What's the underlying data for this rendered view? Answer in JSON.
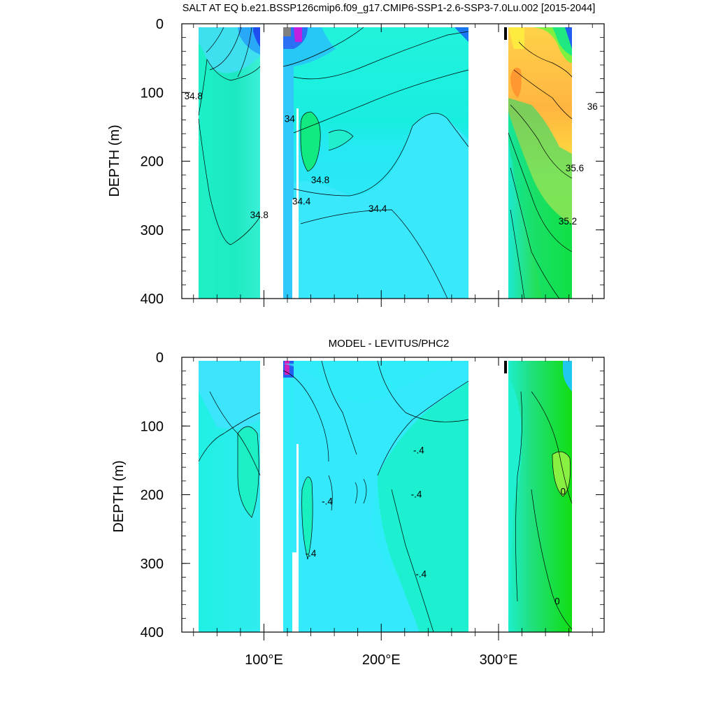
{
  "chart_data": [
    {
      "type": "heatmap",
      "title": "SALT AT EQ b.e21.BSSP126cmip6.f09_g17.CMIP6-SSP1-2.6-SSP3-7.0Lu.002 [2015-2044]",
      "xlabel": "",
      "ylabel": "DEPTH (m)",
      "xlim": [
        30,
        390
      ],
      "ylim": [
        400,
        0
      ],
      "y_ticks": [
        "0",
        "100",
        "200",
        "300",
        "400"
      ],
      "x_ticks": [
        "100°E",
        "200°E",
        "300°E"
      ],
      "x_tick_values": [
        100,
        200,
        300
      ],
      "grid": false,
      "contour_labels": [
        {
          "text": "34.8",
          "x": 40,
          "y": 110
        },
        {
          "text": "34",
          "x": 122,
          "y": 143
        },
        {
          "text": "34.8",
          "x": 148,
          "y": 232
        },
        {
          "text": "34.4",
          "x": 132,
          "y": 263
        },
        {
          "text": "34.4",
          "x": 197,
          "y": 274
        },
        {
          "text": "34.8",
          "x": 96,
          "y": 283
        },
        {
          "text": "36",
          "x": 380,
          "y": 125
        },
        {
          "text": "35.6",
          "x": 365,
          "y": 215
        },
        {
          "text": "35.2",
          "x": 359,
          "y": 292
        }
      ]
    },
    {
      "type": "heatmap",
      "title": "MODEL - LEVITUS/PHC2",
      "xlabel": "",
      "ylabel": "DEPTH (m)",
      "xlim": [
        30,
        390
      ],
      "ylim": [
        400,
        0
      ],
      "y_ticks": [
        "0",
        "100",
        "200",
        "300",
        "400"
      ],
      "x_ticks": [
        "100°E",
        "200°E",
        "300°E"
      ],
      "x_tick_values": [
        100,
        200,
        300
      ],
      "grid": false,
      "contour_labels": [
        {
          "text": "-.4",
          "x": 232,
          "y": 140
        },
        {
          "text": "-.4",
          "x": 230,
          "y": 204
        },
        {
          "text": "-.4",
          "x": 154,
          "y": 214
        },
        {
          "text": "-.4",
          "x": 140,
          "y": 290
        },
        {
          "text": "-.4",
          "x": 234,
          "y": 320
        },
        {
          "text": "0",
          "x": 355,
          "y": 200
        },
        {
          "text": "0",
          "x": 350,
          "y": 360
        }
      ]
    }
  ]
}
